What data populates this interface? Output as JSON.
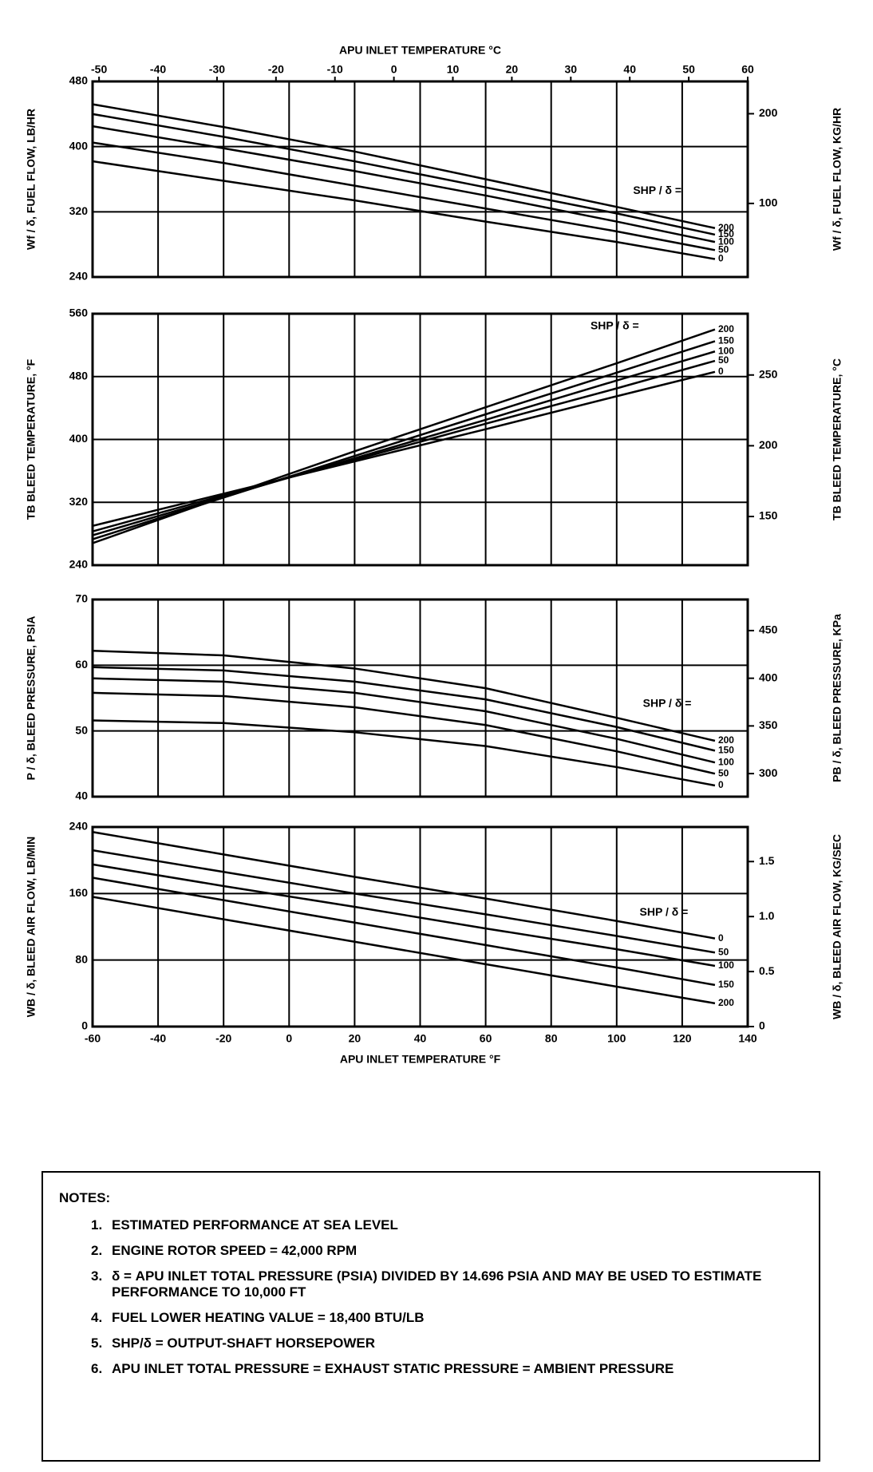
{
  "chart_data": [
    {
      "type": "line",
      "x_label": "APU INLET TEMPERATURE °C",
      "y_label": "Wf / δ, FUEL FLOW, LB/HR",
      "y2_label": "Wf / δ, FUEL FLOW, KG/HR",
      "annotation": "SHP / δ =",
      "x": [
        -60,
        -20,
        20,
        60,
        100,
        130
      ],
      "xlim": [
        -60,
        140
      ],
      "xticks": [
        -60,
        -40,
        -20,
        0,
        20,
        40,
        60,
        80,
        100,
        120,
        140
      ],
      "x2lim": [
        -51.1,
        60
      ],
      "x2ticks": [
        -50,
        -40,
        -30,
        -20,
        -10,
        0,
        10,
        20,
        30,
        40,
        50,
        60
      ],
      "ylim": [
        240,
        480
      ],
      "yticks": [
        240,
        320,
        400,
        480
      ],
      "y2lim": [
        18,
        236
      ],
      "y2ticks": [
        100,
        200
      ],
      "grid": true,
      "series": [
        {
          "name": "200",
          "color": "#000000",
          "values": [
            452,
            424,
            394,
            360,
            326,
            300
          ]
        },
        {
          "name": "150",
          "color": "#000000",
          "values": [
            440,
            412,
            382,
            350,
            318,
            292
          ]
        },
        {
          "name": "100",
          "color": "#000000",
          "values": [
            425,
            398,
            370,
            340,
            308,
            283
          ]
        },
        {
          "name": "50",
          "color": "#000000",
          "values": [
            405,
            380,
            352,
            324,
            296,
            273
          ]
        },
        {
          "name": "0",
          "color": "#000000",
          "values": [
            382,
            358,
            334,
            308,
            283,
            262
          ]
        }
      ]
    },
    {
      "type": "line",
      "y_label": "TB BLEED TEMPERATURE, °F",
      "y2_label": "TB BLEED TEMPERATURE, °C",
      "annotation": "SHP / δ =",
      "x": [
        -60,
        -20,
        20,
        60,
        100,
        130
      ],
      "xlim": [
        -60,
        140
      ],
      "xticks": [
        -60,
        -40,
        -20,
        0,
        20,
        40,
        60,
        80,
        100,
        120,
        140
      ],
      "ylim": [
        240,
        560
      ],
      "yticks": [
        240,
        320,
        400,
        480,
        560
      ],
      "y2lim": [
        115.6,
        293.3
      ],
      "y2ticks": [
        150,
        200,
        250
      ],
      "grid": true,
      "series": [
        {
          "name": "200",
          "color": "#000000",
          "values": [
            268,
            327,
            385,
            441,
            497,
            540
          ]
        },
        {
          "name": "150",
          "color": "#000000",
          "values": [
            273,
            326,
            379,
            432,
            485,
            525
          ]
        },
        {
          "name": "100",
          "color": "#000000",
          "values": [
            278,
            327,
            376,
            425,
            475,
            512
          ]
        },
        {
          "name": "50",
          "color": "#000000",
          "values": [
            283,
            329,
            374,
            420,
            465,
            500
          ]
        },
        {
          "name": "0",
          "color": "#000000",
          "values": [
            290,
            331,
            372,
            413,
            455,
            486
          ]
        }
      ]
    },
    {
      "type": "line",
      "y_label": "P / δ, BLEED PRESSURE, PSIA",
      "y2_label": "PB / δ, BLEED PRESSURE, KPa",
      "annotation": "SHP / δ =",
      "x": [
        -60,
        -20,
        20,
        60,
        100,
        130
      ],
      "xlim": [
        -60,
        140
      ],
      "xticks": [
        -60,
        -40,
        -20,
        0,
        20,
        40,
        60,
        80,
        100,
        120,
        140
      ],
      "ylim": [
        40,
        70
      ],
      "yticks": [
        40,
        50,
        60,
        70
      ],
      "y2lim": [
        275.8,
        482.6
      ],
      "y2ticks": [
        300,
        350,
        400,
        450
      ],
      "grid": true,
      "series": [
        {
          "name": "200",
          "color": "#000000",
          "values": [
            62.2,
            61.5,
            59.5,
            56.5,
            52,
            48.5
          ]
        },
        {
          "name": "150",
          "color": "#000000",
          "values": [
            59.7,
            59.2,
            57.5,
            54.8,
            50.6,
            47
          ]
        },
        {
          "name": "100",
          "color": "#000000",
          "values": [
            58,
            57.5,
            55.8,
            53,
            48.8,
            45.2
          ]
        },
        {
          "name": "50",
          "color": "#000000",
          "values": [
            55.8,
            55.3,
            53.6,
            50.9,
            46.9,
            43.5
          ]
        },
        {
          "name": "0",
          "color": "#000000",
          "values": [
            51.6,
            51.2,
            49.8,
            47.7,
            44.5,
            41.7
          ]
        }
      ]
    },
    {
      "type": "line",
      "x_label": "APU INLET TEMPERATURE °F",
      "y_label": "WB / δ, BLEED AIR FLOW, LB/MIN",
      "y2_label": "WB / δ, BLEED AIR FLOW, KG/SEC",
      "annotation": "SHP / δ =",
      "x": [
        -60,
        -20,
        20,
        60,
        100,
        130
      ],
      "xlim": [
        -60,
        140
      ],
      "xticks": [
        -60,
        -40,
        -20,
        0,
        20,
        40,
        60,
        80,
        100,
        120,
        140
      ],
      "ylim": [
        0,
        240
      ],
      "yticks": [
        0,
        80,
        160,
        240
      ],
      "y2lim": [
        0,
        1.814
      ],
      "y2ticks": [
        0,
        0.5,
        {
          "value": 1,
          "label": "1.0"
        },
        1.5
      ],
      "grid": true,
      "series": [
        {
          "name": "0",
          "color": "#000000",
          "values": [
            234,
            207,
            180,
            154,
            127,
            106
          ]
        },
        {
          "name": "50",
          "color": "#000000",
          "values": [
            212,
            186,
            160,
            135,
            109,
            89
          ]
        },
        {
          "name": "100",
          "color": "#000000",
          "values": [
            195,
            169,
            144,
            118,
            93,
            73
          ]
        },
        {
          "name": "150",
          "color": "#000000",
          "values": [
            179,
            152,
            125,
            98,
            71,
            50
          ]
        },
        {
          "name": "200",
          "color": "#000000",
          "values": [
            156,
            129,
            102,
            75,
            48,
            28
          ]
        }
      ]
    }
  ],
  "notes": {
    "title": "NOTES:",
    "items": [
      {
        "number": "1.",
        "text": "ESTIMATED PERFORMANCE AT SEA LEVEL"
      },
      {
        "number": "2.",
        "text": "ENGINE ROTOR SPEED = 42,000 RPM"
      },
      {
        "number": "3.",
        "text": "δ = APU INLET TOTAL PRESSURE (PSIA) DIVIDED BY 14.696 PSIA AND MAY BE USED TO ESTIMATE PERFORMANCE TO 10,000 FT"
      },
      {
        "number": "4.",
        "text": "FUEL LOWER HEATING VALUE = 18,400 BTU/LB"
      },
      {
        "number": "5.",
        "text": "SHP/δ = OUTPUT-SHAFT HORSEPOWER"
      },
      {
        "number": "6.",
        "text": "APU INLET TOTAL PRESSURE = EXHAUST STATIC PRESSURE = AMBIENT PRESSURE"
      }
    ]
  }
}
